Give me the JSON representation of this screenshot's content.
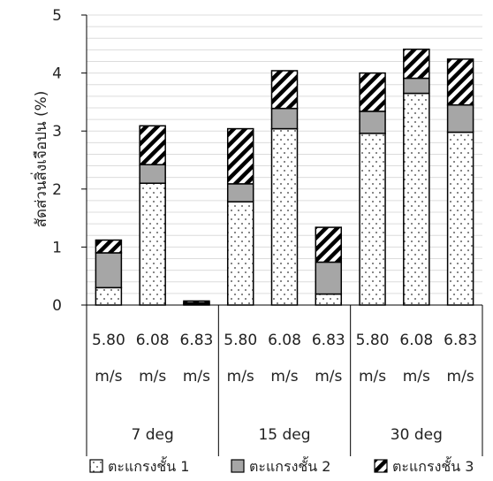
{
  "chart_data": {
    "type": "bar",
    "stacked": true,
    "ylabel": "สัดส่วนสิ่งเจือปน (%)",
    "ylim": [
      0,
      5
    ],
    "yticks": [
      0,
      1,
      2,
      3,
      4,
      5
    ],
    "categories": [
      {
        "group": "7 deg",
        "speed": "5.80",
        "unit": "m/s"
      },
      {
        "group": "7 deg",
        "speed": "6.08",
        "unit": "m/s"
      },
      {
        "group": "7 deg",
        "speed": "6.83",
        "unit": "m/s"
      },
      {
        "group": "15 deg",
        "speed": "5.80",
        "unit": "m/s"
      },
      {
        "group": "15 deg",
        "speed": "6.08",
        "unit": "m/s"
      },
      {
        "group": "15 deg",
        "speed": "6.83",
        "unit": "m/s"
      },
      {
        "group": "30 deg",
        "speed": "5.80",
        "unit": "m/s"
      },
      {
        "group": "30 deg",
        "speed": "6.08",
        "unit": "m/s"
      },
      {
        "group": "30 deg",
        "speed": "6.83",
        "unit": "m/s"
      }
    ],
    "groups": [
      "7 deg",
      "15 deg",
      "30 deg"
    ],
    "series": [
      {
        "name": "ตะแกรงชั้น 1",
        "pattern": "dots",
        "values": [
          0.3,
          2.1,
          0.02,
          1.78,
          3.04,
          0.19,
          2.96,
          3.65,
          2.98
        ]
      },
      {
        "name": "ตะแกรงชั้น 2",
        "pattern": "gray",
        "values": [
          0.6,
          0.32,
          0.02,
          0.31,
          0.35,
          0.55,
          0.38,
          0.26,
          0.47
        ]
      },
      {
        "name": "ตะแกรงชั้น 3",
        "pattern": "hatch",
        "values": [
          0.22,
          0.67,
          0.03,
          0.95,
          0.65,
          0.6,
          0.66,
          0.5,
          0.79
        ]
      }
    ],
    "grid": true,
    "legend": "bottom"
  }
}
